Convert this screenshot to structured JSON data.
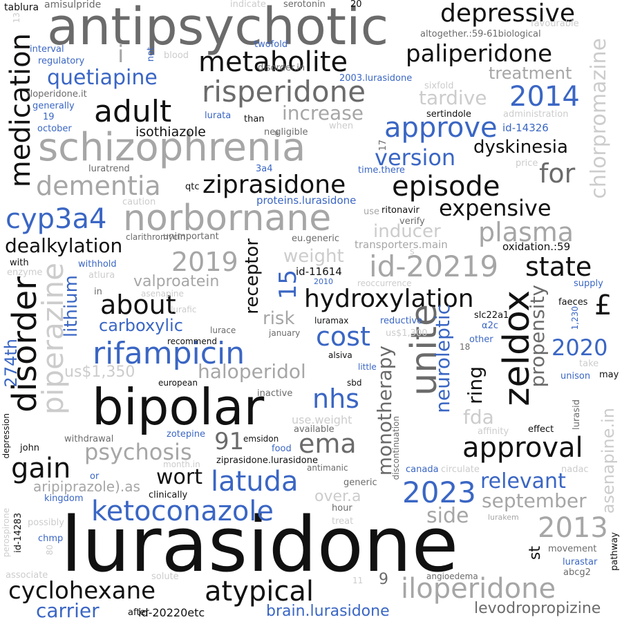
{
  "colors": {
    "black": "#111111",
    "dark_gray": "#6b6b6b",
    "gray": "#a6a6a6",
    "light_gray": "#cccccc",
    "blue": "#3a66c4",
    "background": "#ffffff"
  },
  "words": [
    {
      "text": "lurasidone",
      "color": "black"
    },
    {
      "text": "antipsychotic",
      "color": "dark_gray"
    },
    {
      "text": "schizophrenia",
      "color": "gray"
    },
    {
      "text": "bipolar",
      "color": "black"
    },
    {
      "text": "norbornane",
      "color": "gray"
    },
    {
      "text": "ziprasidone",
      "color": "black"
    },
    {
      "text": "episode",
      "color": "black"
    },
    {
      "text": "risperidone",
      "color": "dark_gray"
    },
    {
      "text": "metabolite",
      "color": "black"
    },
    {
      "text": "paliperidone",
      "color": "black"
    },
    {
      "text": "depressive",
      "color": "black"
    },
    {
      "text": "adult",
      "color": "black"
    },
    {
      "text": "dementia",
      "color": "gray"
    },
    {
      "text": "approve",
      "color": "blue"
    },
    {
      "text": "2014",
      "color": "blue"
    },
    {
      "text": "expensive",
      "color": "black"
    },
    {
      "text": "id-20219",
      "color": "gray"
    },
    {
      "text": "hydroxylation",
      "color": "black"
    },
    {
      "text": "rifampicin",
      "color": "blue"
    },
    {
      "text": "ketoconazole",
      "color": "blue"
    },
    {
      "text": "cyclohexane",
      "color": "black"
    },
    {
      "text": "atypical",
      "color": "black"
    },
    {
      "text": "iloperidone",
      "color": "gray"
    },
    {
      "text": "2023",
      "color": "blue"
    },
    {
      "text": "latuda",
      "color": "blue"
    },
    {
      "text": "gain",
      "color": "black"
    },
    {
      "text": "approval",
      "color": "black"
    },
    {
      "text": "state",
      "color": "black"
    },
    {
      "text": "cyp3a4",
      "color": "blue"
    },
    {
      "text": "plasma",
      "color": "gray"
    },
    {
      "text": "2019",
      "color": "gray"
    },
    {
      "text": "about",
      "color": "black"
    },
    {
      "text": "cost",
      "color": "blue"
    },
    {
      "text": "nhs",
      "color": "blue"
    },
    {
      "text": "ema",
      "color": "dark_gray"
    },
    {
      "text": "2013",
      "color": "gray"
    },
    {
      "text": "quetiapine",
      "color": "blue"
    },
    {
      "text": "increase",
      "color": "gray"
    },
    {
      "text": "version",
      "color": "blue"
    },
    {
      "text": "for",
      "color": "dark_gray"
    },
    {
      "text": "dealkylation",
      "color": "black"
    },
    {
      "text": "haloperidol",
      "color": "gray"
    },
    {
      "text": "psychosis",
      "color": "gray"
    },
    {
      "text": "relevant",
      "color": "blue"
    },
    {
      "text": "2020",
      "color": "blue"
    },
    {
      "text": "wort",
      "color": "black"
    },
    {
      "text": "91",
      "color": "dark_gray"
    },
    {
      "text": "carrier",
      "color": "blue"
    },
    {
      "text": "side",
      "color": "gray"
    },
    {
      "text": "september",
      "color": "gray"
    },
    {
      "text": "tardive",
      "color": "light_gray"
    },
    {
      "text": "treatment",
      "color": "gray"
    },
    {
      "text": "dyskinesia",
      "color": "black"
    },
    {
      "text": "brain.lurasidone",
      "color": "blue"
    },
    {
      "text": "levodropropizine",
      "color": "dark_gray"
    },
    {
      "text": "inducer",
      "color": "light_gray"
    },
    {
      "text": "weight",
      "color": "light_gray"
    },
    {
      "text": "risk",
      "color": "gray"
    },
    {
      "text": "valproatein",
      "color": "gray"
    },
    {
      "text": "carboxylic",
      "color": "blue"
    },
    {
      "text": "isothiazole",
      "color": "black"
    },
    {
      "text": "fda",
      "color": "light_gray"
    },
    {
      "text": "over.a",
      "color": "light_gray"
    },
    {
      "text": "us$1,350",
      "color": "light_gray"
    },
    {
      "text": "£",
      "color": "black"
    },
    {
      "text": "i",
      "color": "gray"
    },
    {
      "text": "id-20220etc",
      "color": "black"
    },
    {
      "text": "aripiprazole).as",
      "color": "gray"
    },
    {
      "text": "medication",
      "color": "black"
    },
    {
      "text": "disorder",
      "color": "black"
    },
    {
      "text": "piperazine",
      "color": "light_gray"
    },
    {
      "text": "lithium",
      "color": "blue"
    },
    {
      "text": "274th",
      "color": "blue"
    },
    {
      "text": "15",
      "color": "blue"
    },
    {
      "text": "receptor",
      "color": "black"
    },
    {
      "text": "unite",
      "color": "dark_gray"
    },
    {
      "text": "zeldox",
      "color": "black"
    },
    {
      "text": "monotherapy",
      "color": "dark_gray"
    },
    {
      "text": "neuroleptic",
      "color": "blue"
    },
    {
      "text": "ring",
      "color": "black"
    },
    {
      "text": "propensity",
      "color": "dark_gray"
    },
    {
      "text": "chlorpromazine",
      "color": "light_gray"
    },
    {
      "text": "asenapine.in",
      "color": "light_gray"
    },
    {
      "text": "st",
      "color": "black"
    },
    {
      "text": "9",
      "color": "dark_gray"
    },
    {
      "text": "tablura",
      "color": "black"
    },
    {
      "text": "amisulpride",
      "color": "dark_gray"
    },
    {
      "text": "indicate",
      "color": "light_gray"
    },
    {
      "text": "serotonin",
      "color": "dark_gray"
    },
    {
      "text": "20",
      "color": "black"
    },
    {
      "text": "altogether.:59-61biological",
      "color": "dark_gray"
    },
    {
      "text": "twofold",
      "color": "blue"
    },
    {
      "text": "disorder.in",
      "color": "dark_gray"
    },
    {
      "text": "2003.lurasidone",
      "color": "blue"
    },
    {
      "text": "sixfold",
      "color": "light_gray"
    },
    {
      "text": "interval",
      "color": "blue"
    },
    {
      "text": "regulatory",
      "color": "blue"
    },
    {
      "text": "blood",
      "color": "light_gray"
    },
    {
      "text": "not",
      "color": "blue"
    },
    {
      "text": "13",
      "color": "light_gray"
    },
    {
      "text": "iloperidone.it",
      "color": "dark_gray"
    },
    {
      "text": "generally",
      "color": "blue"
    },
    {
      "text": "19",
      "color": "blue"
    },
    {
      "text": "october",
      "color": "blue"
    },
    {
      "text": "lurata",
      "color": "blue"
    },
    {
      "text": "than",
      "color": "black"
    },
    {
      "text": "when",
      "color": "light_gray"
    },
    {
      "text": "negligible",
      "color": "dark_gray"
    },
    {
      "text": "sertindole",
      "color": "black"
    },
    {
      "text": "administration",
      "color": "light_gray"
    },
    {
      "text": "id-14326",
      "color": "blue"
    },
    {
      "text": "favourable",
      "color": "light_gray"
    },
    {
      "text": "17",
      "color": "dark_gray"
    },
    {
      "text": "luratrend",
      "color": "dark_gray"
    },
    {
      "text": "3a4",
      "color": "blue"
    },
    {
      "text": "time.there",
      "color": "blue"
    },
    {
      "text": "price",
      "color": "light_gray"
    },
    {
      "text": "qtc",
      "color": "black"
    },
    {
      "text": "caution",
      "color": "light_gray"
    },
    {
      "text": "proteins.lurasidone",
      "color": "blue"
    },
    {
      "text": "use",
      "color": "gray"
    },
    {
      "text": "ritonavir",
      "color": "black"
    },
    {
      "text": "verify",
      "color": "dark_gray"
    },
    {
      "text": "unimportant",
      "color": "dark_gray"
    },
    {
      "text": "eu.generic",
      "color": "dark_gray"
    },
    {
      "text": "transporters.main",
      "color": "gray"
    },
    {
      "text": "oxidation.:59",
      "color": "black"
    },
    {
      "text": "s",
      "color": "light_gray"
    },
    {
      "text": "clarithromycin",
      "color": "dark_gray"
    },
    {
      "text": "with",
      "color": "black"
    },
    {
      "text": "withhold",
      "color": "blue"
    },
    {
      "text": "enzyme",
      "color": "light_gray"
    },
    {
      "text": "atlura",
      "color": "light_gray"
    },
    {
      "text": "id-11614",
      "color": "black"
    },
    {
      "text": "2010",
      "color": "blue"
    },
    {
      "text": "reoccurrence",
      "color": "light_gray"
    },
    {
      "text": "supply",
      "color": "blue"
    },
    {
      "text": "faeces",
      "color": "black"
    },
    {
      "text": "in",
      "color": "dark_gray"
    },
    {
      "text": "asenapine",
      "color": "light_gray"
    },
    {
      "text": "lurafic",
      "color": "light_gray"
    },
    {
      "text": "luramax",
      "color": "black"
    },
    {
      "text": "reductive",
      "color": "blue"
    },
    {
      "text": "slc22a1",
      "color": "black"
    },
    {
      "text": "α2c",
      "color": "blue"
    },
    {
      "text": "1,230",
      "color": "blue"
    },
    {
      "text": "lurace",
      "color": "dark_gray"
    },
    {
      "text": "january",
      "color": "dark_gray"
    },
    {
      "text": "us$1,300",
      "color": "light_gray"
    },
    {
      "text": "other",
      "color": "blue"
    },
    {
      "text": "recommend",
      "color": "black"
    },
    {
      "text": "18",
      "color": "dark_gray"
    },
    {
      "text": "alsiva",
      "color": "black"
    },
    {
      "text": "little",
      "color": "blue"
    },
    {
      "text": "take",
      "color": "light_gray"
    },
    {
      "text": "unison",
      "color": "blue"
    },
    {
      "text": "may",
      "color": "black"
    },
    {
      "text": "european",
      "color": "black"
    },
    {
      "text": "sbd",
      "color": "black"
    },
    {
      "text": "inactive",
      "color": "dark_gray"
    },
    {
      "text": "use.weight",
      "color": "light_gray"
    },
    {
      "text": "available",
      "color": "dark_gray"
    },
    {
      "text": "affinity",
      "color": "light_gray"
    },
    {
      "text": "effect",
      "color": "black"
    },
    {
      "text": "lurasid",
      "color": "dark_gray"
    },
    {
      "text": "depression",
      "color": "black"
    },
    {
      "text": "withdrawal",
      "color": "dark_gray"
    },
    {
      "text": "zotepine",
      "color": "blue"
    },
    {
      "text": "emsidon",
      "color": "black"
    },
    {
      "text": "food",
      "color": "blue"
    },
    {
      "text": "discontinuation",
      "color": "dark_gray"
    },
    {
      "text": "john",
      "color": "black"
    },
    {
      "text": "month.in",
      "color": "light_gray"
    },
    {
      "text": "ziprasidone.lurasidone",
      "color": "black"
    },
    {
      "text": "antimanic",
      "color": "dark_gray"
    },
    {
      "text": "canada",
      "color": "blue"
    },
    {
      "text": "circulate",
      "color": "light_gray"
    },
    {
      "text": "nadac",
      "color": "light_gray"
    },
    {
      "text": "or",
      "color": "blue"
    },
    {
      "text": "clinically",
      "color": "black"
    },
    {
      "text": "generic",
      "color": "dark_gray"
    },
    {
      "text": "kingdom",
      "color": "blue"
    },
    {
      "text": "id-14283",
      "color": "black"
    },
    {
      "text": "possibly",
      "color": "light_gray"
    },
    {
      "text": "hour",
      "color": "dark_gray"
    },
    {
      "text": "treat",
      "color": "light_gray"
    },
    {
      "text": "lurakem",
      "color": "gray"
    },
    {
      "text": "perospirone",
      "color": "light_gray"
    },
    {
      "text": "chmp",
      "color": "blue"
    },
    {
      "text": "80",
      "color": "light_gray"
    },
    {
      "text": "pathway",
      "color": "black"
    },
    {
      "text": "movement",
      "color": "dark_gray"
    },
    {
      "text": "lurastar",
      "color": "blue"
    },
    {
      "text": "associate",
      "color": "light_gray"
    },
    {
      "text": "solute",
      "color": "light_gray"
    },
    {
      "text": "angioedema",
      "color": "dark_gray"
    },
    {
      "text": "abcg2",
      "color": "dark_gray"
    },
    {
      "text": "11",
      "color": "light_gray"
    },
    {
      "text": "after",
      "color": "black"
    }
  ]
}
